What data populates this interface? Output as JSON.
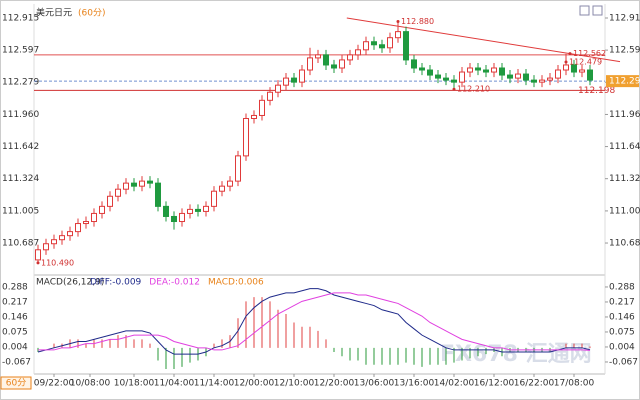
{
  "chart_data": [
    {
      "type": "candlestick",
      "title": "美元日元",
      "subtitle": "(60分)",
      "ylim": [
        110.42,
        113.014
      ],
      "yticks": [
        112.915,
        112.597,
        112.279,
        {
          "value": 111.96,
          "label": "111.960"
        },
        111.642,
        111.324,
        111.005,
        110.687
      ],
      "up_color": "#e03a3a",
      "down_color": "#1f9a3f",
      "open": [
        110.52,
        110.62,
        110.68,
        110.72,
        110.76,
        110.8,
        110.88,
        110.9,
        110.98,
        111.05,
        111.15,
        111.22,
        111.28,
        111.25,
        111.3,
        111.28,
        111.05,
        110.95,
        110.9,
        110.98,
        111.02,
        111.0,
        111.05,
        111.2,
        111.25,
        111.3,
        111.55,
        111.92,
        111.95,
        112.1,
        112.18,
        112.25,
        112.32,
        112.28,
        112.4,
        112.52,
        112.55,
        112.45,
        112.42,
        112.5,
        112.55,
        112.6,
        112.68,
        112.65,
        112.62,
        112.72,
        112.78,
        112.5,
        112.42,
        112.4,
        112.35,
        112.32,
        112.3,
        112.28,
        112.38,
        112.42,
        112.4,
        112.38,
        112.42,
        112.35,
        112.32,
        112.36,
        112.3,
        112.28,
        112.3,
        112.32,
        112.4,
        112.45,
        112.38,
        112.4
      ],
      "high": [
        110.67,
        110.73,
        110.77,
        110.81,
        110.85,
        110.93,
        110.95,
        111.03,
        111.1,
        111.2,
        111.27,
        111.33,
        111.33,
        111.35,
        111.35,
        111.33,
        111.1,
        111.0,
        111.03,
        111.07,
        111.07,
        111.1,
        111.25,
        111.3,
        111.35,
        111.6,
        111.97,
        112.0,
        112.15,
        112.23,
        112.3,
        112.37,
        112.37,
        112.45,
        112.62,
        112.6,
        112.6,
        112.5,
        112.55,
        112.6,
        112.65,
        112.73,
        112.73,
        112.7,
        112.77,
        112.88,
        112.83,
        112.55,
        112.47,
        112.45,
        112.4,
        112.37,
        112.35,
        112.43,
        112.47,
        112.47,
        112.45,
        112.47,
        112.47,
        112.4,
        112.41,
        112.41,
        112.35,
        112.35,
        112.37,
        112.45,
        112.56,
        112.5,
        112.45,
        112.45
      ],
      "low": [
        110.49,
        110.57,
        110.63,
        110.67,
        110.71,
        110.75,
        110.83,
        110.85,
        110.93,
        111.0,
        111.1,
        111.17,
        111.2,
        111.2,
        111.23,
        111.0,
        110.9,
        110.82,
        110.85,
        110.93,
        110.95,
        110.95,
        111.0,
        111.15,
        111.2,
        111.25,
        111.5,
        111.87,
        111.9,
        112.05,
        112.13,
        112.2,
        112.23,
        112.23,
        112.35,
        112.47,
        112.4,
        112.37,
        112.37,
        112.45,
        112.5,
        112.55,
        112.6,
        112.57,
        112.57,
        112.67,
        112.45,
        112.37,
        112.35,
        112.3,
        112.27,
        112.25,
        112.21,
        112.23,
        112.33,
        112.35,
        112.33,
        112.33,
        112.3,
        112.27,
        112.27,
        112.25,
        112.23,
        112.23,
        112.25,
        112.27,
        112.35,
        112.33,
        112.33,
        112.25
      ],
      "close": [
        110.62,
        110.68,
        110.72,
        110.76,
        110.8,
        110.88,
        110.9,
        110.98,
        111.05,
        111.15,
        111.22,
        111.28,
        111.25,
        111.3,
        111.28,
        111.05,
        110.95,
        110.9,
        110.98,
        111.02,
        111.0,
        111.05,
        111.2,
        111.25,
        111.3,
        111.55,
        111.92,
        111.95,
        112.1,
        112.18,
        112.25,
        112.32,
        112.28,
        112.4,
        112.52,
        112.55,
        112.45,
        112.42,
        112.5,
        112.55,
        112.6,
        112.68,
        112.65,
        112.62,
        112.72,
        112.78,
        112.5,
        112.42,
        112.4,
        112.35,
        112.32,
        112.3,
        112.28,
        112.38,
        112.42,
        112.4,
        112.38,
        112.42,
        112.35,
        112.32,
        112.36,
        112.3,
        112.28,
        112.3,
        112.32,
        112.4,
        112.45,
        112.38,
        112.4,
        112.3
      ],
      "levels": [
        {
          "value": 112.55,
          "color": "#e05050"
        },
        {
          "value": 112.198,
          "color": "#d03030",
          "label": "112.198"
        },
        {
          "value": 112.29,
          "color": "#7090d0",
          "dashed": true,
          "label": "112.290"
        }
      ],
      "trendline": {
        "color": "#e03a3a",
        "start": {
          "index": 38.6,
          "value": 112.915
        },
        "end": {
          "index": 66.5,
          "value": 112.562
        }
      },
      "annotations": [
        {
          "label": "112.880",
          "index": 45,
          "value": 112.88
        },
        {
          "label": "112.562",
          "index": 66.5,
          "value": 112.562
        },
        {
          "label": "112.479",
          "index": 66,
          "value": 112.479
        },
        {
          "label": "112.210",
          "index": 52,
          "value": 112.21
        },
        {
          "label": "110.490",
          "index": 0,
          "value": 110.49
        }
      ],
      "watermark": "FX678 汇通网"
    },
    {
      "type": "macd",
      "title": "MACD(26,12,9)",
      "ylim": [
        -0.105,
        0.321
      ],
      "yticks": [
        0.288,
        0.217,
        0.146,
        0.075,
        0.004,
        -0.067
      ],
      "xticks": [
        {
          "value": 2,
          "label": "09/22:00"
        },
        {
          "value": 6.5,
          "label": "10/08:00"
        },
        {
          "value": 12,
          "label": "10/18:00"
        },
        {
          "value": 17,
          "label": "11/04:00"
        },
        {
          "value": 22,
          "label": "11/14:00"
        },
        {
          "value": 27,
          "label": "12/00:00"
        },
        {
          "value": 32,
          "label": "12/10:00"
        },
        {
          "value": 37,
          "label": "12/20:00"
        },
        {
          "value": 42,
          "label": "13/06:00"
        },
        {
          "value": 47,
          "label": "13/16:00"
        },
        {
          "value": 52,
          "label": "14/02:00"
        },
        {
          "value": 57,
          "label": "16/12:00"
        },
        {
          "value": 62,
          "label": "16/22:00"
        },
        {
          "value": 67,
          "label": "17/08:00"
        }
      ],
      "period_tab": "60分",
      "series": [
        {
          "name": "DIFF:-0.009",
          "color": "#1f2a8a",
          "kind": "line",
          "values": [
            -0.02,
            -0.01,
            0.0,
            0.01,
            0.02,
            0.03,
            0.03,
            0.04,
            0.05,
            0.06,
            0.07,
            0.08,
            0.08,
            0.08,
            0.07,
            0.03,
            -0.01,
            -0.03,
            -0.03,
            -0.03,
            -0.03,
            -0.02,
            0.0,
            0.01,
            0.03,
            0.08,
            0.15,
            0.19,
            0.22,
            0.24,
            0.25,
            0.26,
            0.26,
            0.27,
            0.28,
            0.28,
            0.27,
            0.25,
            0.24,
            0.23,
            0.22,
            0.21,
            0.2,
            0.18,
            0.17,
            0.16,
            0.12,
            0.09,
            0.06,
            0.04,
            0.02,
            0.0,
            -0.01,
            -0.01,
            -0.01,
            -0.01,
            -0.01,
            -0.01,
            -0.02,
            -0.02,
            -0.02,
            -0.02,
            -0.02,
            -0.02,
            -0.02,
            -0.01,
            0.0,
            0.0,
            0.0,
            -0.009
          ]
        },
        {
          "name": "DEA:-0.012",
          "color": "#e040e0",
          "kind": "line",
          "values": [
            -0.01,
            -0.01,
            -0.01,
            0.0,
            0.0,
            0.01,
            0.02,
            0.02,
            0.03,
            0.04,
            0.04,
            0.05,
            0.06,
            0.06,
            0.06,
            0.06,
            0.05,
            0.03,
            0.02,
            0.01,
            0.0,
            0.0,
            -0.01,
            -0.01,
            0.0,
            0.01,
            0.04,
            0.07,
            0.1,
            0.13,
            0.16,
            0.18,
            0.2,
            0.22,
            0.23,
            0.24,
            0.25,
            0.26,
            0.26,
            0.26,
            0.25,
            0.25,
            0.24,
            0.23,
            0.22,
            0.21,
            0.19,
            0.17,
            0.15,
            0.12,
            0.1,
            0.08,
            0.06,
            0.04,
            0.03,
            0.02,
            0.01,
            0.0,
            0.0,
            -0.01,
            -0.01,
            -0.01,
            -0.01,
            -0.01,
            -0.01,
            -0.01,
            -0.01,
            -0.01,
            -0.01,
            -0.012
          ]
        },
        {
          "name": "MACD:0.006",
          "color": "#e8821a",
          "kind": "bar",
          "up_color": "#e04040",
          "down_color": "#2a9a3a",
          "values": [
            -0.02,
            0,
            0.02,
            0.02,
            0.04,
            0.04,
            0.02,
            0.04,
            0.04,
            0.04,
            0.06,
            0.06,
            0.04,
            0.04,
            0.02,
            -0.06,
            -0.1,
            -0.1,
            -0.09,
            -0.07,
            -0.06,
            -0.04,
            0.02,
            0.04,
            0.06,
            0.14,
            0.22,
            0.24,
            0.24,
            0.22,
            0.18,
            0.16,
            0.12,
            0.1,
            0.1,
            0.08,
            0.04,
            -0.02,
            -0.04,
            -0.06,
            -0.06,
            -0.08,
            -0.08,
            -0.08,
            -0.08,
            -0.08,
            -0.07,
            -0.08,
            -0.09,
            -0.08,
            -0.08,
            -0.08,
            -0.07,
            -0.06,
            -0.05,
            -0.04,
            -0.03,
            -0.02,
            -0.04,
            -0.02,
            -0.02,
            -0.02,
            -0.02,
            -0.02,
            -0.02,
            0,
            0.02,
            0.02,
            0.02,
            0.006
          ]
        }
      ]
    }
  ]
}
